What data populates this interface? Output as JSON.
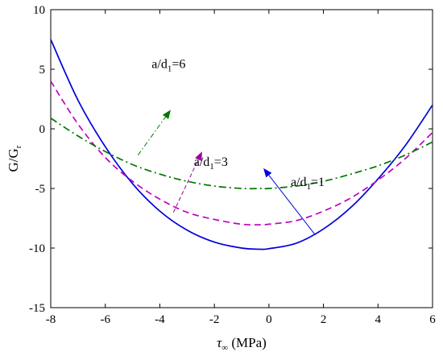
{
  "chart_data": {
    "type": "line",
    "title": "",
    "xlabel": {
      "symbol": "τ",
      "sub": "∞",
      "rest": " (MPa)"
    },
    "ylabel": {
      "main": "G/G",
      "sub": "r"
    },
    "xlim": [
      -8,
      6
    ],
    "ylim": [
      -15,
      10
    ],
    "xticks": [
      "-8",
      "-6",
      "-4",
      "-2",
      "0",
      "2",
      "4",
      "6"
    ],
    "yticks": [
      "-15",
      "-10",
      "-5",
      "0",
      "5",
      "10"
    ],
    "grid": false,
    "legend": "none",
    "series": [
      {
        "color": "#0000dd",
        "dash": "solid",
        "x": [
          -8,
          -7,
          -6,
          -5,
          -4,
          -3,
          -2,
          -1,
          -0.3,
          0,
          1,
          2,
          3,
          4,
          5,
          6
        ],
        "y": [
          7.5,
          2.4,
          -1.5,
          -4.6,
          -6.9,
          -8.5,
          -9.5,
          -10.0,
          -10.1,
          -10.05,
          -9.6,
          -8.4,
          -6.6,
          -4.2,
          -1.4,
          2.0
        ]
      },
      {
        "color": "#c000c0",
        "dash": "dashed",
        "x": [
          -8,
          -7,
          -6,
          -5,
          -4,
          -3,
          -2,
          -1,
          -0.3,
          0,
          1,
          2,
          3,
          4,
          5,
          6
        ],
        "y": [
          4.0,
          0.4,
          -2.4,
          -4.4,
          -5.9,
          -7.0,
          -7.6,
          -8.0,
          -8.05,
          -8.0,
          -7.7,
          -6.9,
          -5.8,
          -4.3,
          -2.5,
          -0.3
        ]
      },
      {
        "color": "#007700",
        "dash": "dashdot",
        "x": [
          -8,
          -7,
          -6,
          -5,
          -4,
          -3,
          -2,
          -1,
          -0.3,
          0,
          1,
          2,
          3,
          4,
          5,
          6
        ],
        "y": [
          0.9,
          -0.6,
          -1.9,
          -3.0,
          -3.8,
          -4.4,
          -4.8,
          -5.0,
          -5.0,
          -5.0,
          -4.8,
          -4.4,
          -3.8,
          -3.1,
          -2.2,
          -1.1
        ]
      }
    ],
    "annotations": [
      {
        "pre": "a/d",
        "sub": "1",
        "post": "=6",
        "color": "#007700",
        "dash": "dashdot",
        "text_x": -4.3,
        "text_y": 5.1,
        "arrow_from": [
          -4.8,
          -2.2
        ],
        "arrow_to": [
          -3.6,
          1.6
        ]
      },
      {
        "pre": "a/d",
        "sub": "1",
        "post": "=3",
        "color": "#a000a0",
        "dash": "dashed",
        "text_x": -2.75,
        "text_y": -3.1,
        "arrow_from": [
          -3.5,
          -7.0
        ],
        "arrow_to": [
          -2.45,
          -1.9
        ]
      },
      {
        "pre": "a/d",
        "sub": "1",
        "post": "=1",
        "color": "#0000dd",
        "dash": "solid",
        "text_x": 0.8,
        "text_y": -4.8,
        "arrow_from": [
          1.7,
          -8.9
        ],
        "arrow_to": [
          -0.2,
          -3.3
        ]
      }
    ]
  }
}
